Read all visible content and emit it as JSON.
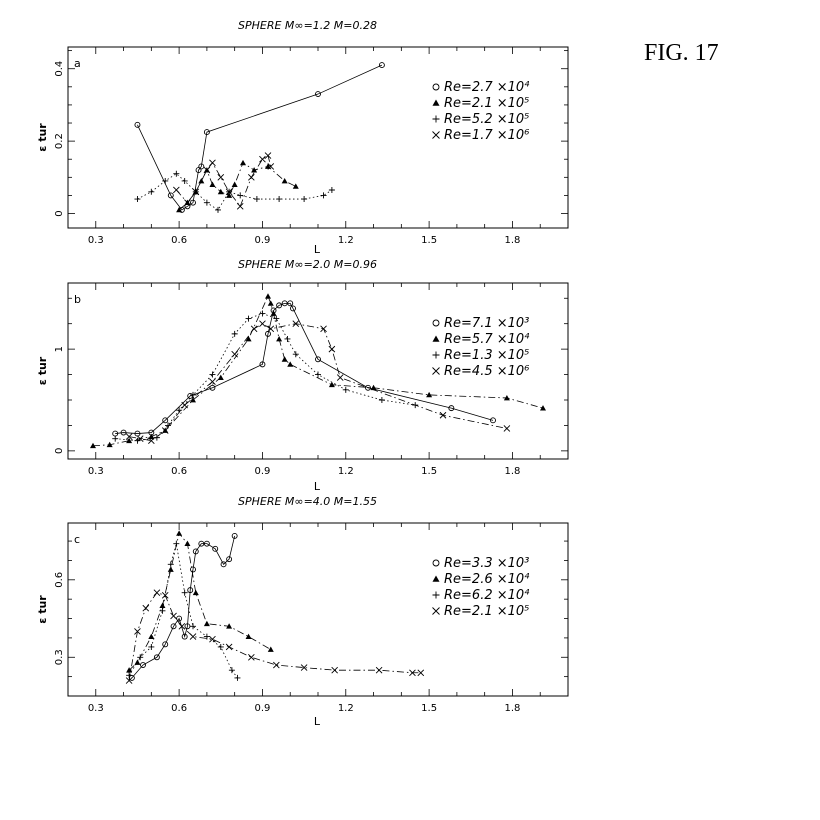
{
  "figure_label": "FIG. 17",
  "chart_data": [
    {
      "type": "line",
      "panel": "a",
      "title": "SPHERE  M∞=1.2  M=0.28",
      "xlabel": "L",
      "ylabel": "ε tur",
      "xlim": [
        0.2,
        2.0
      ],
      "ylim": [
        -0.04,
        0.46
      ],
      "x_ticks": [
        "0.3",
        "0.6",
        "0.9",
        "1.2",
        "1.5",
        "1.8"
      ],
      "y_ticks": [
        "0",
        "0.2",
        "0.4"
      ],
      "y_tick_values": [
        0,
        0.2,
        0.4
      ],
      "grid": false,
      "legend_position": "top-right",
      "series": [
        {
          "name": "Re=2.7 ×10⁴",
          "marker": "circle",
          "line": "solid",
          "x": [
            0.45,
            0.57,
            0.61,
            0.63,
            0.65,
            0.67,
            0.68,
            0.7,
            1.1,
            1.33
          ],
          "y": [
            0.245,
            0.05,
            0.01,
            0.02,
            0.03,
            0.12,
            0.13,
            0.225,
            0.33,
            0.41
          ]
        },
        {
          "name": "Re=2.1 ×10⁵",
          "marker": "triangle",
          "line": "dash-dot",
          "x": [
            0.6,
            0.63,
            0.66,
            0.68,
            0.7,
            0.72,
            0.75,
            0.78,
            0.8,
            0.83,
            0.87,
            0.92,
            0.98,
            1.02
          ],
          "y": [
            0.01,
            0.03,
            0.06,
            0.09,
            0.12,
            0.08,
            0.06,
            0.05,
            0.08,
            0.14,
            0.12,
            0.13,
            0.09,
            0.075
          ]
        },
        {
          "name": "Re=5.2 ×10⁵",
          "marker": "plus",
          "line": "dotted",
          "x": [
            0.45,
            0.5,
            0.55,
            0.59,
            0.62,
            0.66,
            0.7,
            0.74,
            0.78,
            0.82,
            0.88,
            0.96,
            1.05,
            1.12,
            1.15
          ],
          "y": [
            0.04,
            0.06,
            0.09,
            0.11,
            0.09,
            0.06,
            0.03,
            0.01,
            0.06,
            0.05,
            0.04,
            0.04,
            0.04,
            0.05,
            0.065
          ]
        },
        {
          "name": "Re=1.7 ×10⁶",
          "marker": "x",
          "line": "dash-dot",
          "x": [
            0.59,
            0.63,
            0.66,
            0.7,
            0.72,
            0.75,
            0.78,
            0.82,
            0.86,
            0.9,
            0.92,
            0.93
          ],
          "y": [
            0.065,
            0.03,
            0.06,
            0.12,
            0.14,
            0.1,
            0.06,
            0.02,
            0.1,
            0.15,
            0.16,
            0.13
          ]
        }
      ]
    },
    {
      "type": "line",
      "panel": "b",
      "title": "SPHERE  M∞=2.0  M=0.96",
      "xlabel": "L",
      "ylabel": "ε tur",
      "xlim": [
        0.2,
        2.0
      ],
      "ylim": [
        -0.08,
        1.65
      ],
      "x_ticks": [
        "0.3",
        "0.6",
        "0.9",
        "1.2",
        "1.5",
        "1.8"
      ],
      "y_ticks": [
        "0",
        "1"
      ],
      "y_tick_values": [
        0,
        1
      ],
      "grid": false,
      "legend_position": "top-right",
      "series": [
        {
          "name": "Re=7.1 ×10³",
          "marker": "circle",
          "line": "solid",
          "x": [
            0.37,
            0.4,
            0.45,
            0.5,
            0.55,
            0.64,
            0.72,
            0.9,
            0.92,
            0.94,
            0.96,
            0.98,
            1.0,
            1.01,
            1.1,
            1.28,
            1.58,
            1.73
          ],
          "y": [
            0.17,
            0.18,
            0.17,
            0.18,
            0.3,
            0.54,
            0.62,
            0.85,
            1.15,
            1.38,
            1.43,
            1.45,
            1.45,
            1.4,
            0.9,
            0.62,
            0.42,
            0.3
          ]
        },
        {
          "name": "Re=5.7 ×10⁴",
          "marker": "triangle",
          "line": "dash-dot",
          "x": [
            0.29,
            0.35,
            0.42,
            0.5,
            0.55,
            0.65,
            0.75,
            0.85,
            0.92,
            0.93,
            0.94,
            0.96,
            0.98,
            1.0,
            1.15,
            1.3,
            1.5,
            1.78,
            1.91
          ],
          "y": [
            0.05,
            0.06,
            0.1,
            0.14,
            0.2,
            0.5,
            0.72,
            1.1,
            1.52,
            1.45,
            1.35,
            1.1,
            0.9,
            0.85,
            0.65,
            0.62,
            0.55,
            0.52,
            0.42
          ]
        },
        {
          "name": "Re=1.3 ×10⁵",
          "marker": "plus",
          "line": "dotted",
          "x": [
            0.37,
            0.45,
            0.52,
            0.56,
            0.6,
            0.65,
            0.72,
            0.8,
            0.85,
            0.9,
            0.95,
            0.99,
            1.02,
            1.1,
            1.2,
            1.33,
            1.45
          ],
          "y": [
            0.12,
            0.1,
            0.13,
            0.25,
            0.4,
            0.55,
            0.75,
            1.15,
            1.3,
            1.35,
            1.3,
            1.1,
            0.95,
            0.75,
            0.6,
            0.5,
            0.45
          ]
        },
        {
          "name": "Re=4.5 ×10⁶",
          "marker": "x",
          "line": "dash-dot",
          "x": [
            0.42,
            0.46,
            0.5,
            0.55,
            0.62,
            0.72,
            0.8,
            0.87,
            0.9,
            0.93,
            1.02,
            1.12,
            1.15,
            1.18,
            1.55,
            1.78
          ],
          "y": [
            0.14,
            0.12,
            0.1,
            0.2,
            0.45,
            0.68,
            0.95,
            1.2,
            1.25,
            1.2,
            1.25,
            1.2,
            1.0,
            0.72,
            0.35,
            0.22
          ]
        }
      ]
    },
    {
      "type": "line",
      "panel": "c",
      "title": "SPHERE  M∞=4.0  M=1.55",
      "xlabel": "L",
      "ylabel": "ε tur",
      "xlim": [
        0.2,
        2.0
      ],
      "ylim": [
        0.15,
        0.82
      ],
      "x_ticks": [
        "0.3",
        "0.6",
        "0.9",
        "1.2",
        "1.5",
        "1.8"
      ],
      "y_ticks": [
        "0.3",
        "0.6"
      ],
      "y_tick_values": [
        0.3,
        0.6
      ],
      "grid": false,
      "legend_position": "top-right",
      "series": [
        {
          "name": "Re=3.3 ×10³",
          "marker": "circle",
          "line": "solid",
          "x": [
            0.43,
            0.47,
            0.52,
            0.55,
            0.58,
            0.6,
            0.62,
            0.63,
            0.64,
            0.65,
            0.66,
            0.68,
            0.7,
            0.73,
            0.76,
            0.78,
            0.8
          ],
          "y": [
            0.22,
            0.27,
            0.3,
            0.35,
            0.42,
            0.45,
            0.38,
            0.42,
            0.56,
            0.64,
            0.71,
            0.74,
            0.74,
            0.72,
            0.66,
            0.68,
            0.77
          ]
        },
        {
          "name": "Re=2.6 ×10⁴",
          "marker": "triangle",
          "line": "dash-dot",
          "x": [
            0.42,
            0.45,
            0.5,
            0.54,
            0.57,
            0.6,
            0.63,
            0.66,
            0.7,
            0.78,
            0.85,
            0.93
          ],
          "y": [
            0.25,
            0.28,
            0.38,
            0.5,
            0.64,
            0.78,
            0.74,
            0.55,
            0.43,
            0.42,
            0.38,
            0.33
          ]
        },
        {
          "name": "Re=6.2 ×10⁴",
          "marker": "plus",
          "line": "dotted",
          "x": [
            0.42,
            0.46,
            0.5,
            0.54,
            0.57,
            0.59,
            0.62,
            0.65,
            0.7,
            0.75,
            0.79,
            0.81
          ],
          "y": [
            0.23,
            0.3,
            0.34,
            0.48,
            0.66,
            0.74,
            0.55,
            0.42,
            0.38,
            0.34,
            0.25,
            0.22
          ]
        },
        {
          "name": "Re=2.1 ×10⁵",
          "marker": "x",
          "line": "dash-dot",
          "x": [
            0.42,
            0.45,
            0.48,
            0.52,
            0.55,
            0.58,
            0.61,
            0.65,
            0.72,
            0.78,
            0.86,
            0.95,
            1.05,
            1.16,
            1.32,
            1.44,
            1.47
          ],
          "y": [
            0.21,
            0.4,
            0.49,
            0.55,
            0.54,
            0.46,
            0.42,
            0.38,
            0.37,
            0.34,
            0.3,
            0.27,
            0.26,
            0.25,
            0.25,
            0.24,
            0.24
          ]
        }
      ]
    }
  ]
}
